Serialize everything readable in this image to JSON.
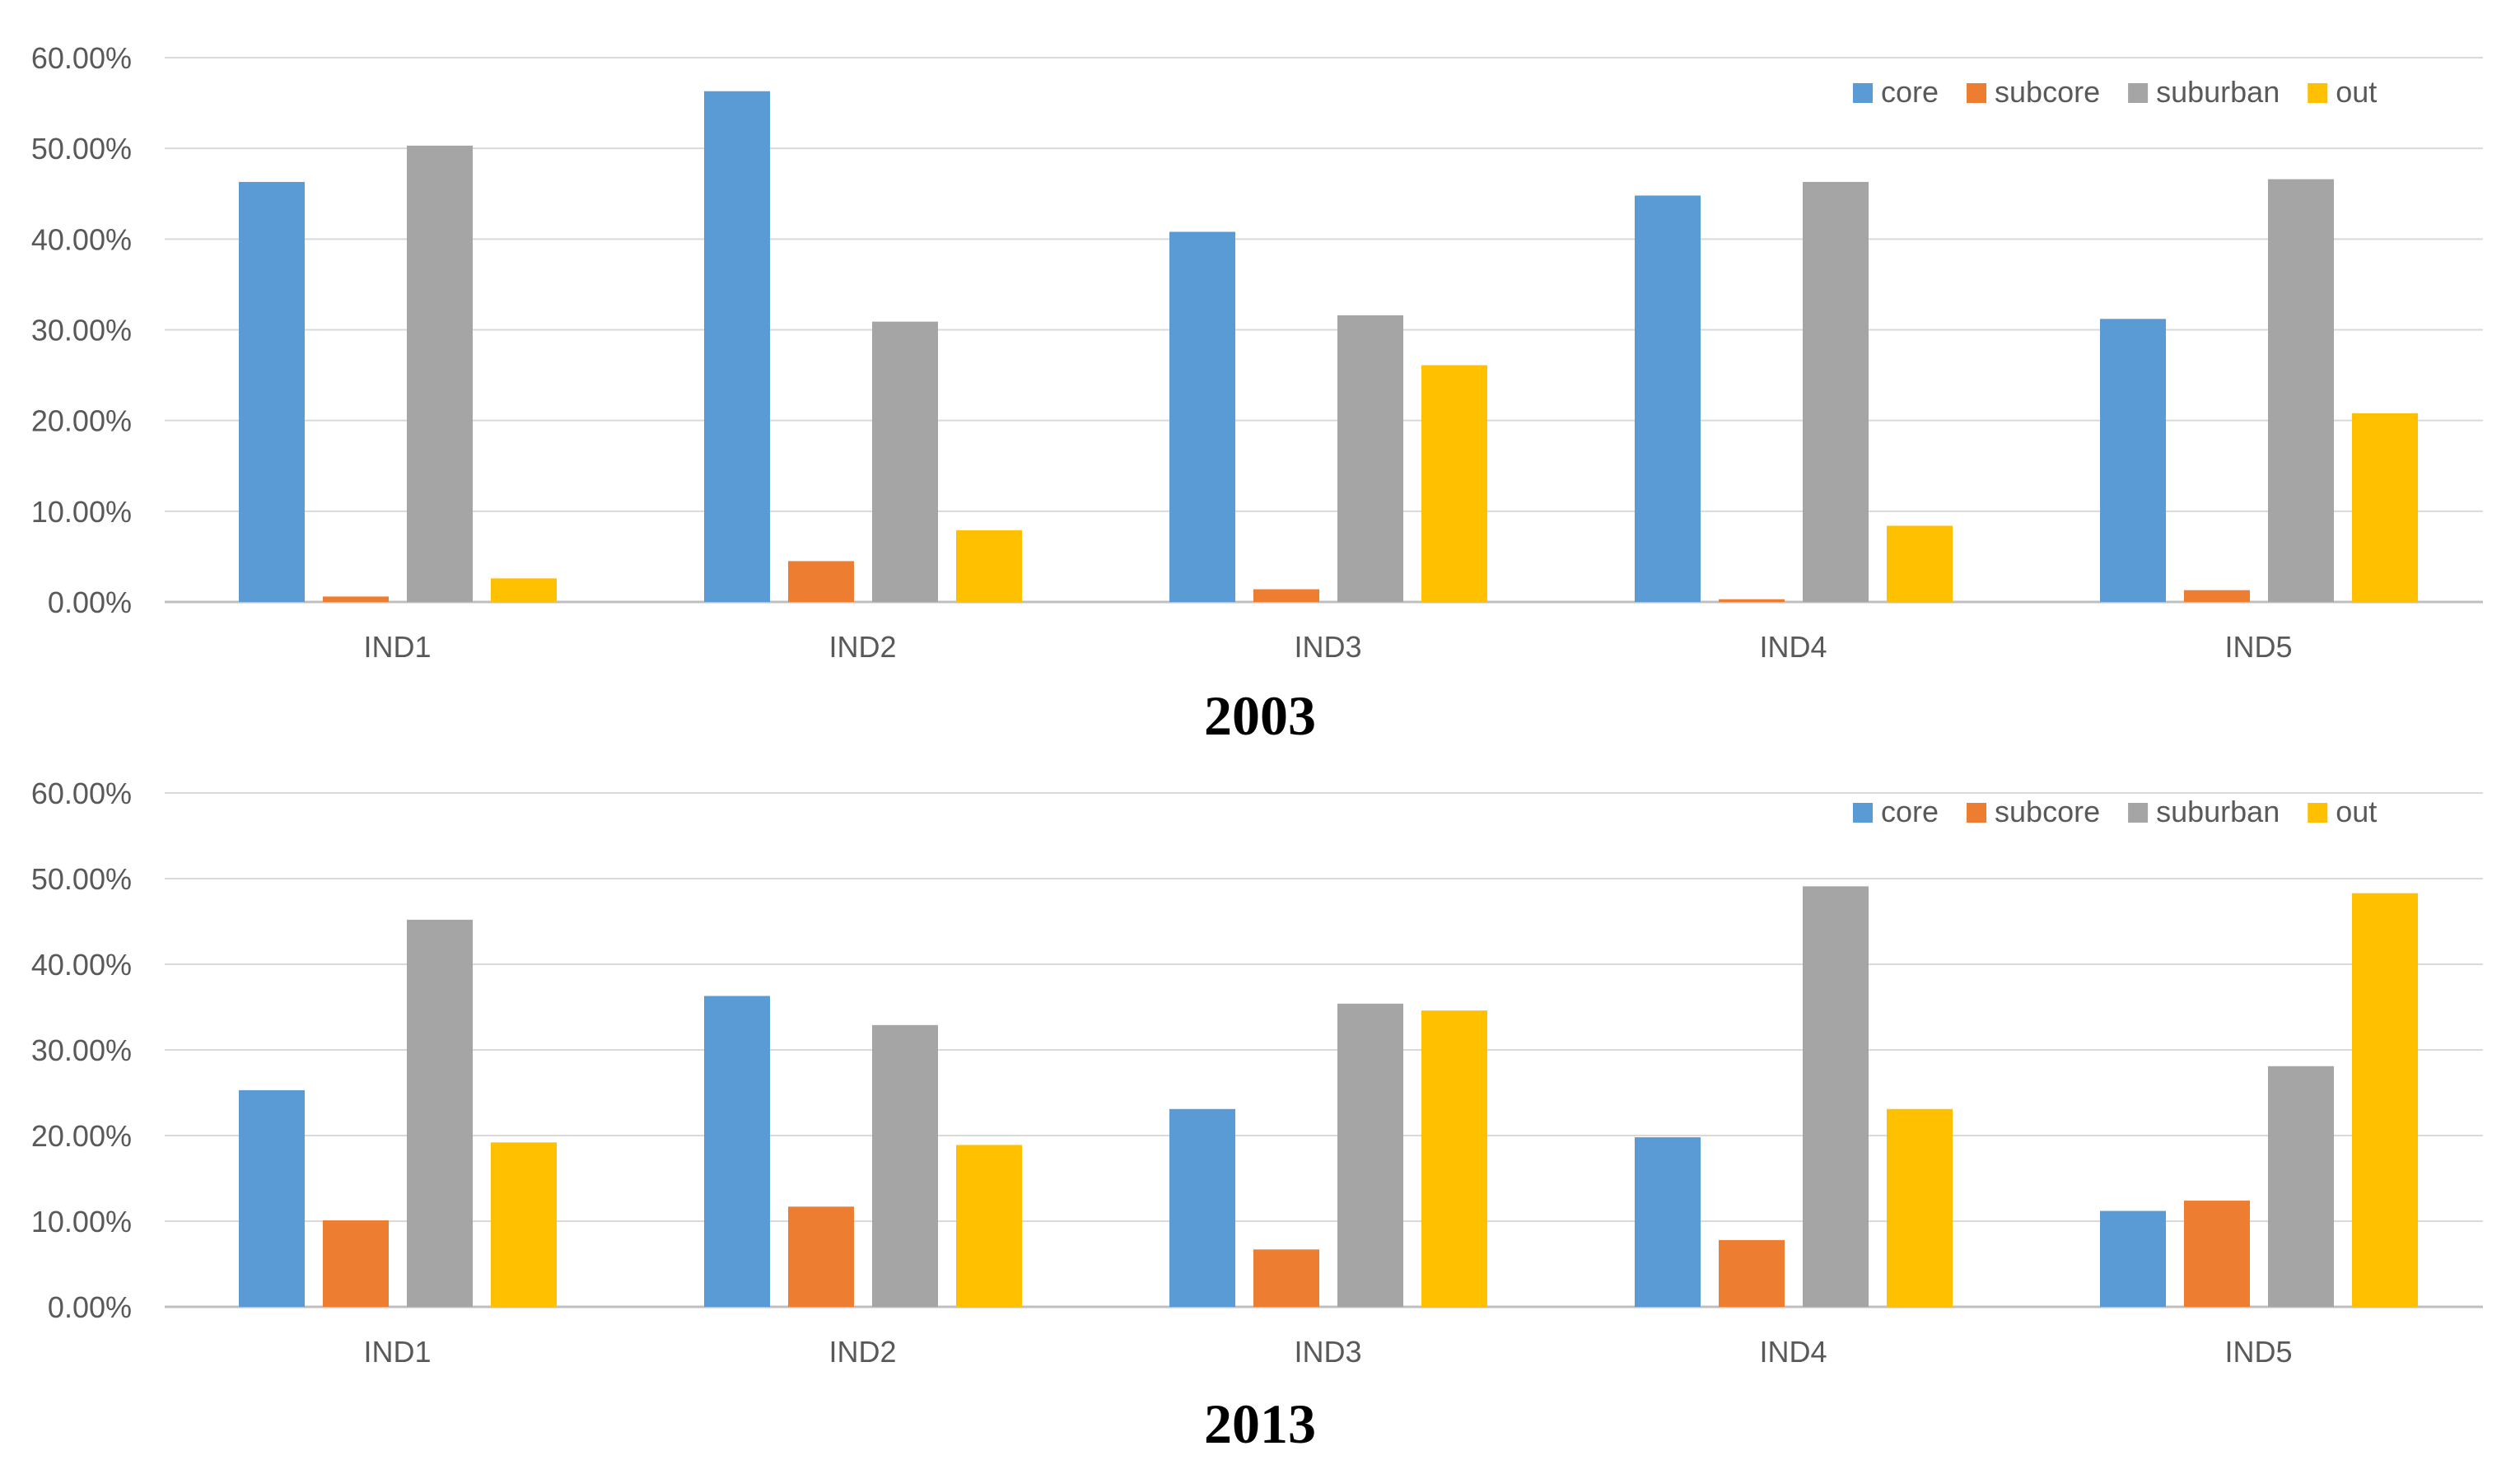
{
  "chart_data": [
    {
      "type": "bar",
      "title": "2003",
      "categories": [
        "IND1",
        "IND2",
        "IND3",
        "IND4",
        "IND5"
      ],
      "ylim": [
        0,
        60
      ],
      "yticks": [
        "0.00%",
        "10.00%",
        "20.00%",
        "30.00%",
        "40.00%",
        "50.00%",
        "60.00%"
      ],
      "ylabel": "",
      "xlabel": "",
      "grid": true,
      "legend_position": "top-right",
      "series": [
        {
          "name": "core",
          "color": "#5B9BD5",
          "values": [
            46.3,
            56.3,
            40.8,
            44.8,
            31.2
          ]
        },
        {
          "name": "subcore",
          "color": "#ED7D31",
          "values": [
            0.6,
            4.5,
            1.4,
            0.3,
            1.3
          ]
        },
        {
          "name": "suburban",
          "color": "#A5A5A5",
          "values": [
            50.3,
            30.9,
            31.6,
            46.3,
            46.6
          ]
        },
        {
          "name": "out",
          "color": "#FFC000",
          "values": [
            2.6,
            7.9,
            26.1,
            8.4,
            20.8
          ]
        }
      ]
    },
    {
      "type": "bar",
      "title": "2013",
      "categories": [
        "IND1",
        "IND2",
        "IND3",
        "IND4",
        "IND5"
      ],
      "ylim": [
        0,
        60
      ],
      "yticks": [
        "0.00%",
        "10.00%",
        "20.00%",
        "30.00%",
        "40.00%",
        "50.00%",
        "60.00%"
      ],
      "ylabel": "",
      "xlabel": "",
      "grid": true,
      "legend_position": "top-right",
      "series": [
        {
          "name": "core",
          "color": "#5B9BD5",
          "values": [
            25.3,
            36.3,
            23.1,
            19.8,
            11.2
          ]
        },
        {
          "name": "subcore",
          "color": "#ED7D31",
          "values": [
            10.1,
            11.7,
            6.7,
            7.8,
            12.4
          ]
        },
        {
          "name": "suburban",
          "color": "#A5A5A5",
          "values": [
            45.2,
            32.9,
            35.4,
            49.1,
            28.1
          ]
        },
        {
          "name": "out",
          "color": "#FFC000",
          "values": [
            19.2,
            18.9,
            34.6,
            23.1,
            48.3
          ]
        }
      ]
    }
  ]
}
